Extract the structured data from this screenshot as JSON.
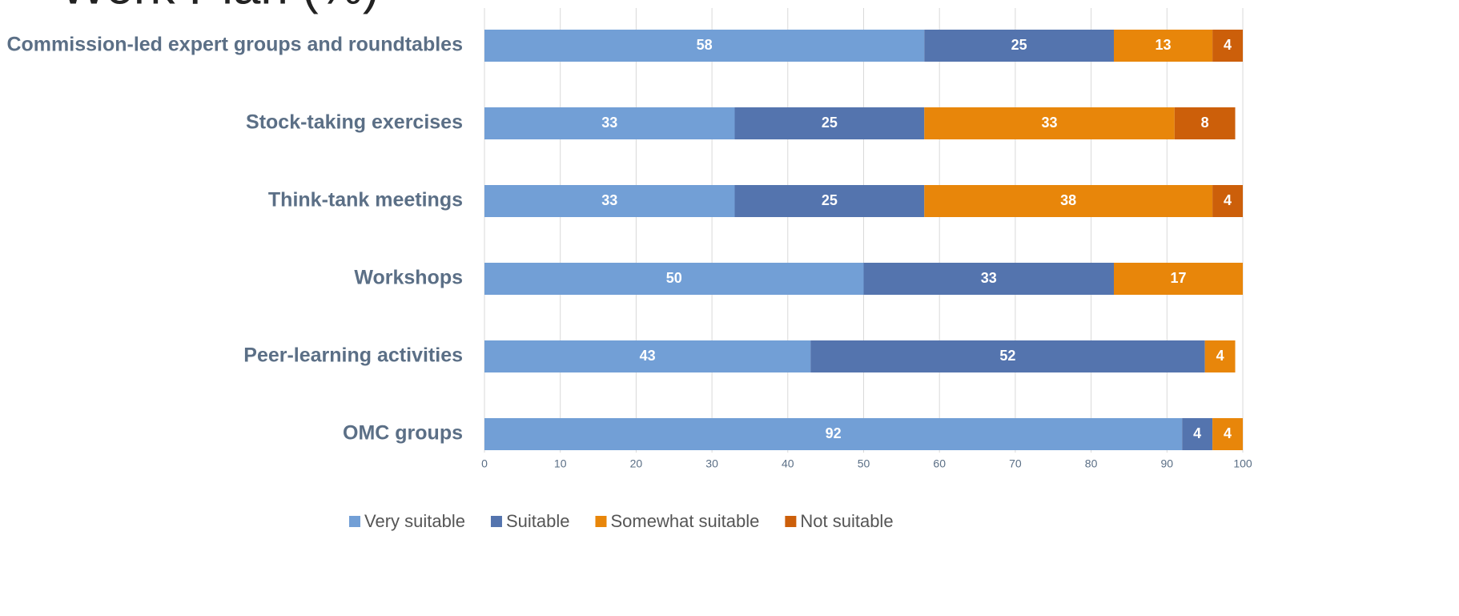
{
  "chart_data": {
    "type": "stacked_bar_horizontal",
    "title": "Work Plan (%)",
    "categories": [
      "Commission-led expert groups and roundtables",
      "Stock-taking exercises",
      "Think-tank meetings",
      "Workshops",
      "Peer-learning activities",
      "OMC groups"
    ],
    "series": [
      {
        "name": "Very suitable",
        "color": "#729fd6",
        "values": [
          58,
          33,
          33,
          50,
          43,
          92
        ]
      },
      {
        "name": "Suitable",
        "color": "#5474ae",
        "values": [
          25,
          25,
          25,
          33,
          52,
          4
        ]
      },
      {
        "name": "Somewhat suitable",
        "color": "#e8860a",
        "values": [
          13,
          33,
          38,
          17,
          4,
          4
        ]
      },
      {
        "name": "Not suitable",
        "color": "#cc5f0a",
        "values": [
          4,
          8,
          4,
          null,
          null,
          0
        ]
      }
    ],
    "xlim": [
      0,
      100
    ],
    "xticks": [
      0,
      10,
      20,
      30,
      40,
      50,
      60,
      70,
      80,
      90,
      100
    ],
    "grid": true,
    "legend": "bottom"
  }
}
